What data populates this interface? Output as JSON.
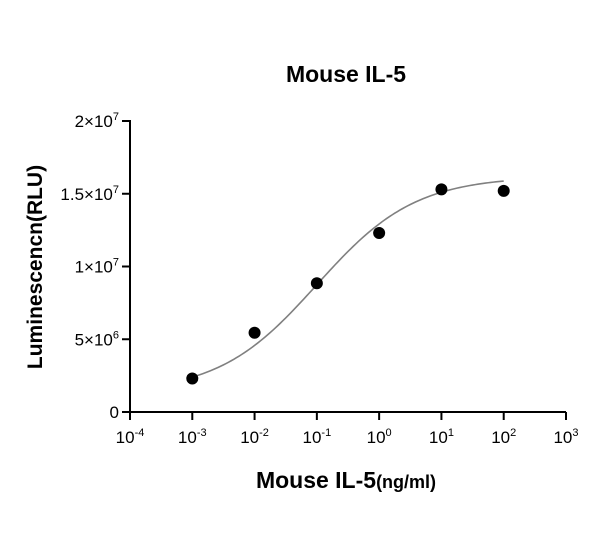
{
  "chart_data": {
    "type": "scatter",
    "title": "Mouse IL-5",
    "xlabel": {
      "main": "Mouse IL-5",
      "unit": "(ng/ml)"
    },
    "ylabel": "Luminescencn(RLU)",
    "x_scale": "log10",
    "xlim": [
      0.0001,
      1000
    ],
    "ylim": [
      0,
      20000000
    ],
    "x_ticks": [
      {
        "base": "10",
        "exp": "-4",
        "value": 0.0001
      },
      {
        "base": "10",
        "exp": "-3",
        "value": 0.001
      },
      {
        "base": "10",
        "exp": "-2",
        "value": 0.01
      },
      {
        "base": "10",
        "exp": "-1",
        "value": 0.1
      },
      {
        "base": "10",
        "exp": "0",
        "value": 1
      },
      {
        "base": "10",
        "exp": "1",
        "value": 10
      },
      {
        "base": "10",
        "exp": "2",
        "value": 100
      },
      {
        "base": "10",
        "exp": "3",
        "value": 1000
      }
    ],
    "y_ticks": [
      {
        "mant": "0",
        "exp": "",
        "value": 0
      },
      {
        "mant": "5×10",
        "exp": "6",
        "value": 5000000
      },
      {
        "mant": "1×10",
        "exp": "7",
        "value": 10000000
      },
      {
        "mant": "1.5×10",
        "exp": "7",
        "value": 15000000
      },
      {
        "mant": "2×10",
        "exp": "7",
        "value": 20000000
      }
    ],
    "series": [
      {
        "points": [
          {
            "x": 0.001,
            "y": 2300000
          },
          {
            "x": 0.01,
            "y": 5450000
          },
          {
            "x": 0.1,
            "y": 8850000
          },
          {
            "x": 1,
            "y": 12300000
          },
          {
            "x": 10,
            "y": 15300000
          },
          {
            "x": 100,
            "y": 15200000
          }
        ],
        "fit": "four-parameter logistic",
        "fit_params": {
          "bottom": 1300000,
          "top": 16200000,
          "log_ec50": -1.0,
          "hill": 0.55
        },
        "marker_color": "#000000",
        "line_color": "#808080"
      }
    ],
    "grid": false,
    "legend": "none"
  }
}
